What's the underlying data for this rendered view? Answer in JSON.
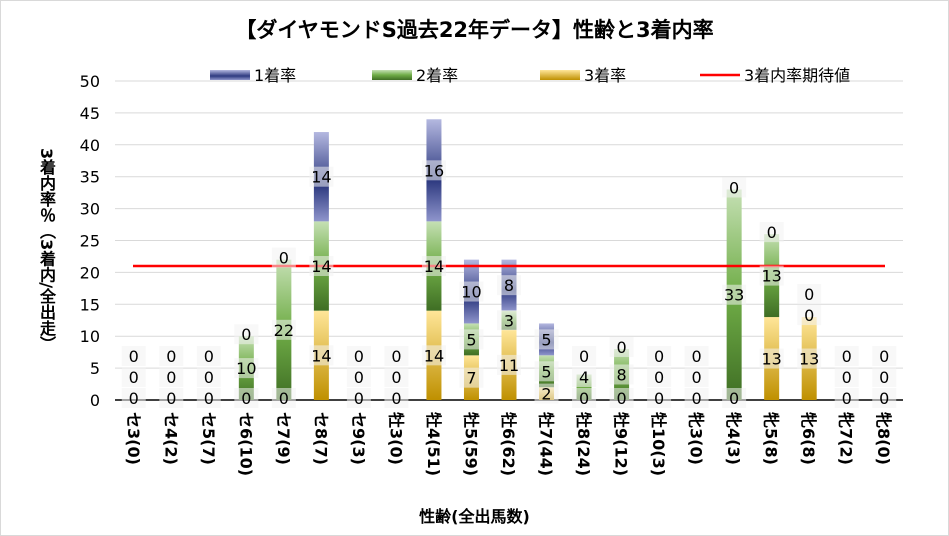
{
  "chart_data": {
    "type": "bar",
    "stacked": true,
    "title": "【ダイヤモンドS過去22年データ】性齢と3着内率",
    "xlabel": "性齢(全出馬数)",
    "ylabel": "3着内率％（3着内/全出走）",
    "ylim": [
      0,
      50
    ],
    "yticks": [
      0,
      5,
      10,
      15,
      20,
      25,
      30,
      35,
      40,
      45,
      50
    ],
    "grid": true,
    "legend": "top",
    "categories": [
      "セ3(0)",
      "セ4(2)",
      "セ5(7)",
      "セ6(10)",
      "セ7(9)",
      "セ8(7)",
      "セ9(3)",
      "牡3(0)",
      "牡4(51)",
      "牡5(59)",
      "牡6(62)",
      "牡7(44)",
      "牡8(24)",
      "牡9(12)",
      "牡10(3)",
      "牝3(0)",
      "牝4(3)",
      "牝5(8)",
      "牝6(8)",
      "牝7(2)",
      "牝8(0)"
    ],
    "series": [
      {
        "name": "3着率",
        "color": "#c9a227",
        "values": [
          0,
          0,
          0,
          0,
          0,
          14,
          0,
          0,
          14,
          7,
          11,
          2,
          0,
          0,
          0,
          0,
          0,
          13,
          13,
          0,
          0
        ]
      },
      {
        "name": "2着率",
        "color": "#70a04a",
        "values": [
          0,
          0,
          0,
          10,
          22,
          14,
          0,
          0,
          14,
          5,
          3,
          5,
          4,
          8,
          0,
          0,
          33,
          13,
          0,
          0,
          0
        ]
      },
      {
        "name": "1着率",
        "color": "#4a55a0",
        "values": [
          0,
          0,
          0,
          0,
          0,
          14,
          0,
          0,
          16,
          10,
          8,
          5,
          0,
          0,
          0,
          0,
          0,
          0,
          0,
          0,
          0
        ]
      }
    ],
    "reference_line": {
      "name": "3着内率期待値",
      "value": 21,
      "color": "#ff0000"
    }
  }
}
